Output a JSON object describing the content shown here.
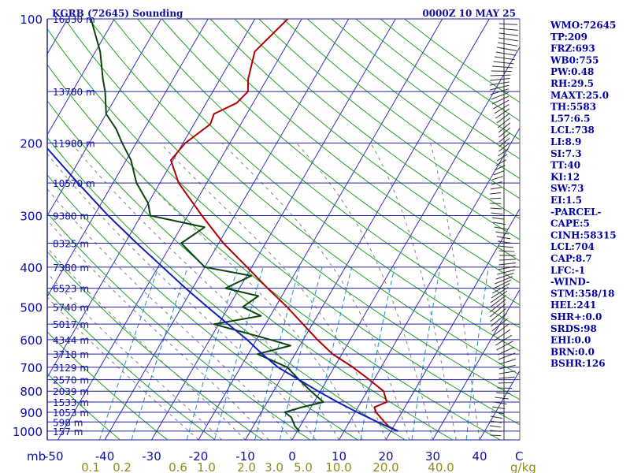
{
  "chart_data": {
    "type": "line",
    "title_left": "KGRB (72645) Sounding",
    "title_right": "0000Z 10 MAY 25",
    "xlabel_unit": "mb",
    "x_axis_unit2": "g/kg",
    "xlim": [
      -50,
      50
    ],
    "pressure_ticks": [
      100,
      200,
      300,
      400,
      500,
      600,
      700,
      800,
      900,
      1000
    ],
    "temp_ticks": [
      -50,
      -40,
      -30,
      -20,
      -10,
      0,
      10,
      20,
      30,
      40
    ],
    "temp_end_label": "C",
    "mixing_ratio_labels": [
      "0.1",
      "0.2",
      "0.6",
      "1.0",
      "2.0",
      "3.0",
      "5.0",
      "10.0",
      "20.0",
      "40.0"
    ],
    "heights": [
      {
        "p": 100,
        "label": "16330 m"
      },
      {
        "p": 150,
        "label": "13780 m"
      },
      {
        "p": 200,
        "label": "11980 m"
      },
      {
        "p": 250,
        "label": "10570 m"
      },
      {
        "p": 300,
        "label": "9380 m"
      },
      {
        "p": 350,
        "label": "8325 m"
      },
      {
        "p": 400,
        "label": "7380 m"
      },
      {
        "p": 450,
        "label": "6523 m"
      },
      {
        "p": 500,
        "label": "5740 m"
      },
      {
        "p": 550,
        "label": "5017 m"
      },
      {
        "p": 600,
        "label": "4344 m"
      },
      {
        "p": 650,
        "label": "3718 m"
      },
      {
        "p": 700,
        "label": "3129 m"
      },
      {
        "p": 750,
        "label": "2570 m"
      },
      {
        "p": 800,
        "label": "2039 m"
      },
      {
        "p": 850,
        "label": "1533 m"
      },
      {
        "p": 900,
        "label": "1053 m"
      },
      {
        "p": 950,
        "label": "598 m"
      },
      {
        "p": 1000,
        "label": "157 m"
      }
    ],
    "series": [
      {
        "name": "",
        "color": "#b00000",
        "kind": "temperature",
        "points": [
          {
            "p": 1000,
            "t": 21.5
          },
          {
            "p": 975,
            "t": 19.0
          },
          {
            "p": 950,
            "t": 17.5
          },
          {
            "p": 925,
            "t": 16.0
          },
          {
            "p": 900,
            "t": 14.5
          },
          {
            "p": 875,
            "t": 13.5
          },
          {
            "p": 850,
            "t": 15.5
          },
          {
            "p": 800,
            "t": 13.5
          },
          {
            "p": 750,
            "t": 9.0
          },
          {
            "p": 700,
            "t": 4.0
          },
          {
            "p": 650,
            "t": -2.0
          },
          {
            "p": 600,
            "t": -7.0
          },
          {
            "p": 550,
            "t": -12.0
          },
          {
            "p": 500,
            "t": -17.5
          },
          {
            "p": 450,
            "t": -24.0
          },
          {
            "p": 400,
            "t": -31.0
          },
          {
            "p": 350,
            "t": -39.0
          },
          {
            "p": 300,
            "t": -47.0
          },
          {
            "p": 250,
            "t": -56.0
          },
          {
            "p": 220,
            "t": -60.5
          },
          {
            "p": 200,
            "t": -59.5
          },
          {
            "p": 180,
            "t": -56.5
          },
          {
            "p": 170,
            "t": -57.0
          },
          {
            "p": 160,
            "t": -53.5
          },
          {
            "p": 150,
            "t": -52.5
          },
          {
            "p": 140,
            "t": -54.0
          },
          {
            "p": 120,
            "t": -56.0
          },
          {
            "p": 100,
            "t": -53.0
          }
        ]
      },
      {
        "name": "",
        "color": "#0b460b",
        "kind": "dewpoint",
        "points": [
          {
            "p": 1000,
            "t": 0.5
          },
          {
            "p": 975,
            "t": -1.0
          },
          {
            "p": 950,
            "t": -2.0
          },
          {
            "p": 925,
            "t": -3.0
          },
          {
            "p": 900,
            "t": -5.0
          },
          {
            "p": 875,
            "t": -2.0
          },
          {
            "p": 850,
            "t": 2.0
          },
          {
            "p": 825,
            "t": 0.0
          },
          {
            "p": 800,
            "t": -2.0
          },
          {
            "p": 750,
            "t": -6.0
          },
          {
            "p": 700,
            "t": -10.0
          },
          {
            "p": 650,
            "t": -18.0
          },
          {
            "p": 620,
            "t": -12.0
          },
          {
            "p": 600,
            "t": -17.0
          },
          {
            "p": 550,
            "t": -31.0
          },
          {
            "p": 525,
            "t": -22.0
          },
          {
            "p": 500,
            "t": -27.0
          },
          {
            "p": 470,
            "t": -25.0
          },
          {
            "p": 450,
            "t": -33.0
          },
          {
            "p": 420,
            "t": -29.0
          },
          {
            "p": 400,
            "t": -40.0
          },
          {
            "p": 350,
            "t": -48.0
          },
          {
            "p": 320,
            "t": -45.0
          },
          {
            "p": 300,
            "t": -58.0
          },
          {
            "p": 280,
            "t": -60.0
          },
          {
            "p": 250,
            "t": -65.0
          },
          {
            "p": 220,
            "t": -69.0
          },
          {
            "p": 200,
            "t": -73.0
          },
          {
            "p": 185,
            "t": -76.0
          },
          {
            "p": 170,
            "t": -80.0
          },
          {
            "p": 150,
            "t": -83.0
          },
          {
            "p": 140,
            "t": -85.0
          },
          {
            "p": 120,
            "t": -89.0
          },
          {
            "p": 100,
            "t": -95.0
          }
        ]
      },
      {
        "name": "",
        "color": "#1020b8",
        "kind": "parcel",
        "points": [
          {
            "p": 1000,
            "t": 21.5
          },
          {
            "p": 950,
            "t": 16.0
          },
          {
            "p": 900,
            "t": 10.5
          },
          {
            "p": 850,
            "t": 5.0
          },
          {
            "p": 800,
            "t": -0.5
          },
          {
            "p": 750,
            "t": -6.0
          },
          {
            "p": 700,
            "t": -12.0
          },
          {
            "p": 650,
            "t": -17.0
          },
          {
            "p": 600,
            "t": -22.0
          },
          {
            "p": 550,
            "t": -28.0
          },
          {
            "p": 500,
            "t": -34.5
          },
          {
            "p": 450,
            "t": -41.5
          },
          {
            "p": 400,
            "t": -49.0
          },
          {
            "p": 350,
            "t": -57.5
          },
          {
            "p": 300,
            "t": -67.0
          },
          {
            "p": 250,
            "t": -77.5
          },
          {
            "p": 200,
            "t": -90.0
          },
          {
            "p": 150,
            "t": -105.0
          },
          {
            "p": 120,
            "t": -117.0
          }
        ]
      }
    ]
  },
  "stats": [
    "WMO:72645",
    "TP:209",
    "FRZ:693",
    "WB0:755",
    "PW:0.48",
    "RH:29.5",
    "MAXT:25.0",
    "TH:5583",
    "L57:6.5",
    "LCL:738",
    "LI:8.9",
    "SI:7.3",
    "TT:40",
    "KI:12",
    "SW:73",
    "EI:1.5",
    "-PARCEL-",
    "CAPE:5",
    "CINH:58315",
    "LCL:704",
    "CAP:8.7",
    "LFC:-1",
    "-WIND-",
    "STM:358/18",
    "HEL:241",
    "SHR+:0.0",
    "SRDS:98",
    "EHI:0.0",
    "BRN:0.0",
    "BSHR:126"
  ],
  "colors": {
    "isobar": "#2020a0",
    "isotherm": "#3030c0",
    "dry_adiabat": "#20a020",
    "moist_adiabat": "#808080",
    "mixing_ratio": "#2090c8",
    "frame_left": "#2020a0",
    "text": "#1010a0"
  }
}
